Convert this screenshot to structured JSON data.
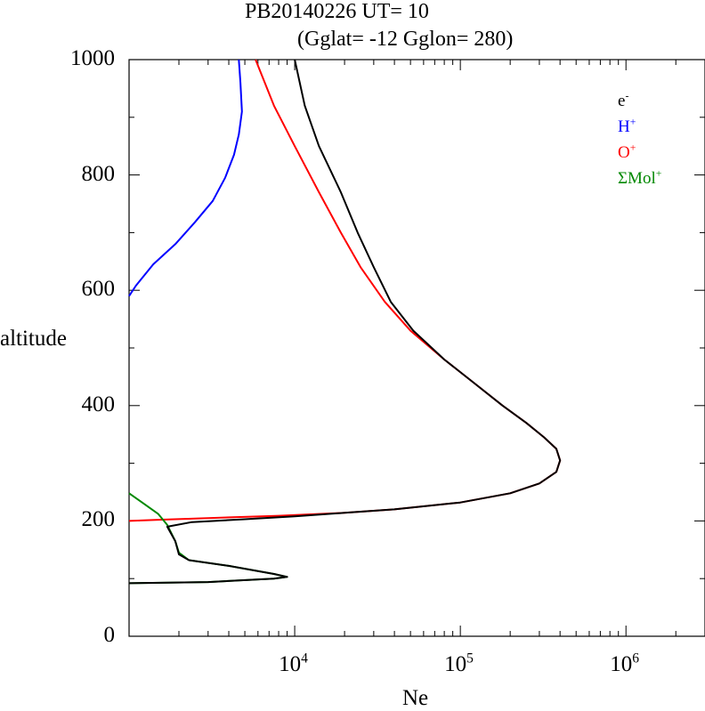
{
  "chart_data": {
    "type": "line",
    "title_line1": "PB20140226   UT=  10",
    "title_line2": "(Gglat= -12   Gglon=  280)",
    "xlabel": "Ne",
    "ylabel": "altitude",
    "xscale": "log",
    "xlim": [
      1000,
      3000000
    ],
    "ylim": [
      0,
      1000
    ],
    "y_ticks": [
      "0",
      "200",
      "400",
      "600",
      "800",
      "1000"
    ],
    "x_ticks": [
      {
        "base": "10",
        "exp": "4"
      },
      {
        "base": "10",
        "exp": "5"
      },
      {
        "base": "10",
        "exp": "6"
      }
    ],
    "legend_position": "top-right",
    "legend": [
      {
        "base": "e",
        "sup": "-",
        "color": "#000000"
      },
      {
        "base": "H",
        "sup": "+",
        "color": "#0000ff"
      },
      {
        "base": "O",
        "sup": "+",
        "color": "#ff0000"
      },
      {
        "base": "ΣMol",
        "sup": "+",
        "color": "#008800"
      }
    ],
    "series": [
      {
        "key": "O+",
        "color": "#ff0000",
        "points": [
          [
            1000,
            200
          ],
          [
            1500,
            202
          ],
          [
            3000,
            205
          ],
          [
            8000,
            209
          ],
          [
            20000,
            214
          ],
          [
            40000,
            220
          ],
          [
            100000,
            232
          ],
          [
            200000,
            248
          ],
          [
            300000,
            265
          ],
          [
            380000,
            285
          ],
          [
            400000,
            305
          ],
          [
            380000,
            325
          ],
          [
            320000,
            345
          ],
          [
            250000,
            370
          ],
          [
            180000,
            400
          ],
          [
            120000,
            440
          ],
          [
            80000,
            480
          ],
          [
            50000,
            530
          ],
          [
            35000,
            580
          ],
          [
            25000,
            640
          ],
          [
            19000,
            700
          ],
          [
            14000,
            770
          ],
          [
            10000,
            850
          ],
          [
            7500,
            920
          ],
          [
            5800,
            1000
          ]
        ]
      },
      {
        "key": "H+",
        "color": "#0000ff",
        "points": [
          [
            1000,
            590
          ],
          [
            1100,
            608
          ],
          [
            1400,
            645
          ],
          [
            1900,
            680
          ],
          [
            2500,
            718
          ],
          [
            3200,
            755
          ],
          [
            3800,
            795
          ],
          [
            4300,
            835
          ],
          [
            4600,
            870
          ],
          [
            4800,
            910
          ],
          [
            4700,
            960
          ],
          [
            4600,
            1000
          ]
        ]
      },
      {
        "key": "ΣMol+",
        "color": "#008800",
        "points": [
          [
            1000,
            248
          ],
          [
            1200,
            232
          ],
          [
            1500,
            212
          ],
          [
            1700,
            193
          ],
          [
            1900,
            165
          ],
          [
            2000,
            145
          ],
          [
            2300,
            132
          ],
          [
            4000,
            122
          ],
          [
            7500,
            108
          ],
          [
            9000,
            103
          ],
          [
            7500,
            100
          ],
          [
            3000,
            94
          ],
          [
            1000,
            92
          ]
        ]
      },
      {
        "key": "e-",
        "color": "#000000",
        "points": [
          [
            1000,
            92
          ],
          [
            3000,
            94
          ],
          [
            7500,
            100
          ],
          [
            9000,
            103
          ],
          [
            7500,
            108
          ],
          [
            4000,
            122
          ],
          [
            2300,
            132
          ],
          [
            2000,
            142
          ],
          [
            1900,
            165
          ],
          [
            1700,
            190
          ],
          [
            2400,
            198
          ],
          [
            5000,
            203
          ],
          [
            10000,
            208
          ],
          [
            20000,
            214
          ],
          [
            40000,
            220
          ],
          [
            100000,
            232
          ],
          [
            200000,
            248
          ],
          [
            300000,
            265
          ],
          [
            380000,
            285
          ],
          [
            400000,
            305
          ],
          [
            380000,
            325
          ],
          [
            320000,
            345
          ],
          [
            250000,
            370
          ],
          [
            180000,
            400
          ],
          [
            120000,
            440
          ],
          [
            80000,
            480
          ],
          [
            52000,
            530
          ],
          [
            38000,
            580
          ],
          [
            30000,
            640
          ],
          [
            24000,
            700
          ],
          [
            19000,
            770
          ],
          [
            14000,
            850
          ],
          [
            11500,
            920
          ],
          [
            10000,
            1000
          ]
        ]
      }
    ]
  }
}
